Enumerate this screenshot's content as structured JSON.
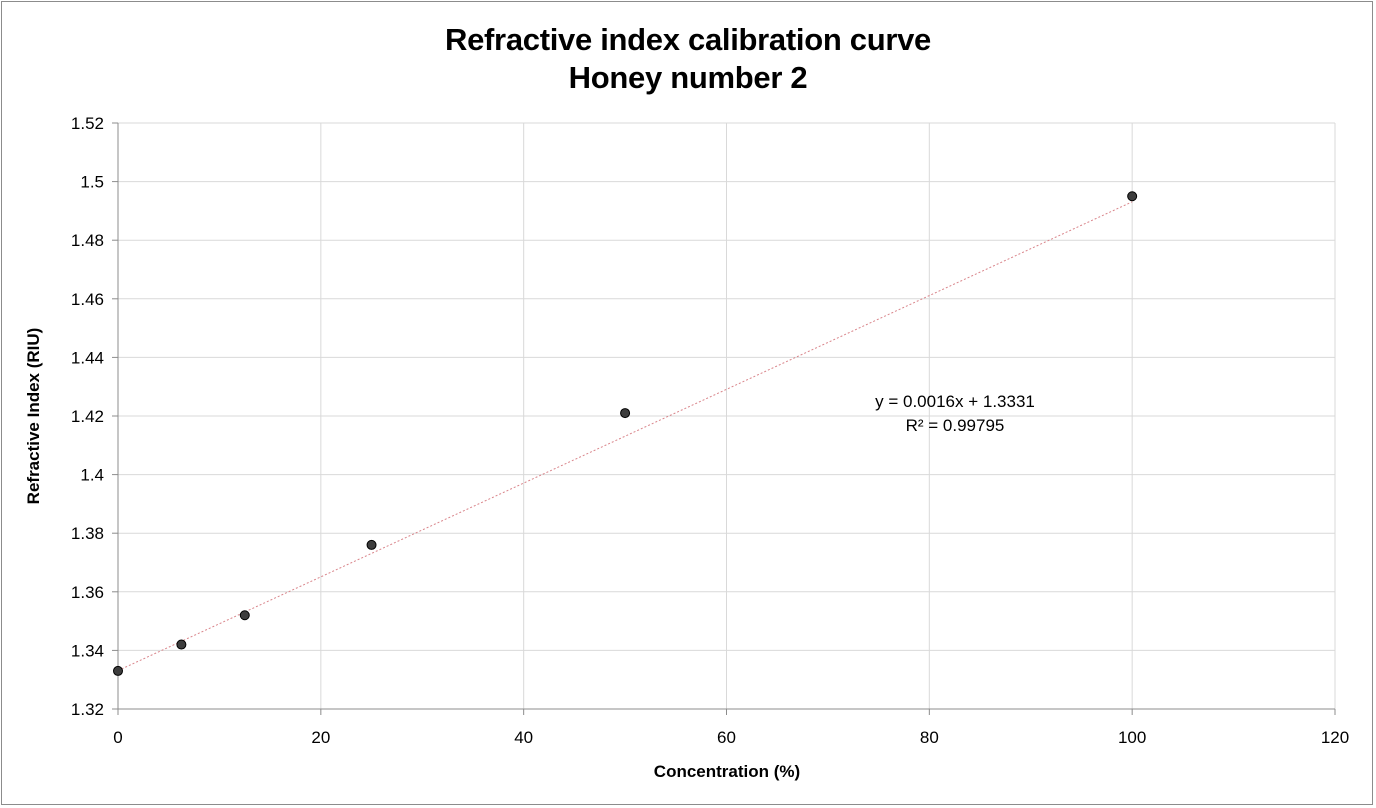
{
  "chart_data": {
    "type": "scatter",
    "title_line1": "Refractive index calibration curve",
    "title_line2": "Honey number 2",
    "xlabel": "Concentration (%)",
    "ylabel": "Refractive Index (RIU)",
    "xlim": [
      0,
      120
    ],
    "ylim": [
      1.32,
      1.52
    ],
    "x_ticks": [
      0,
      20,
      40,
      60,
      80,
      100,
      120
    ],
    "x_tick_labels": [
      "0",
      "20",
      "40",
      "60",
      "80",
      "100",
      "120"
    ],
    "y_ticks": [
      1.32,
      1.34,
      1.36,
      1.38,
      1.4,
      1.42,
      1.44,
      1.46,
      1.48,
      1.5,
      1.52
    ],
    "y_tick_labels": [
      "1.32",
      "1.34",
      "1.36",
      "1.38",
      "1.4",
      "1.42",
      "1.44",
      "1.46",
      "1.48",
      "1.5",
      "1.52"
    ],
    "grid": true,
    "series": [
      {
        "name": "Honey number 2",
        "x": [
          0,
          6.25,
          12.5,
          25,
          50,
          100
        ],
        "y": [
          1.333,
          1.342,
          1.352,
          1.376,
          1.421,
          1.495
        ]
      }
    ],
    "trendline": {
      "type": "linear",
      "slope": 0.0016,
      "intercept": 1.3331,
      "x_range": [
        0,
        100
      ],
      "color": "#d9848a",
      "equation_text": "y = 0.0016x + 1.3331",
      "r2_text": "R² = 0.99795"
    },
    "colors": {
      "marker_fill": "#3d3d3d",
      "marker_stroke": "#000000",
      "grid": "#d9d9d9",
      "axis": "#8c8c8c"
    }
  }
}
